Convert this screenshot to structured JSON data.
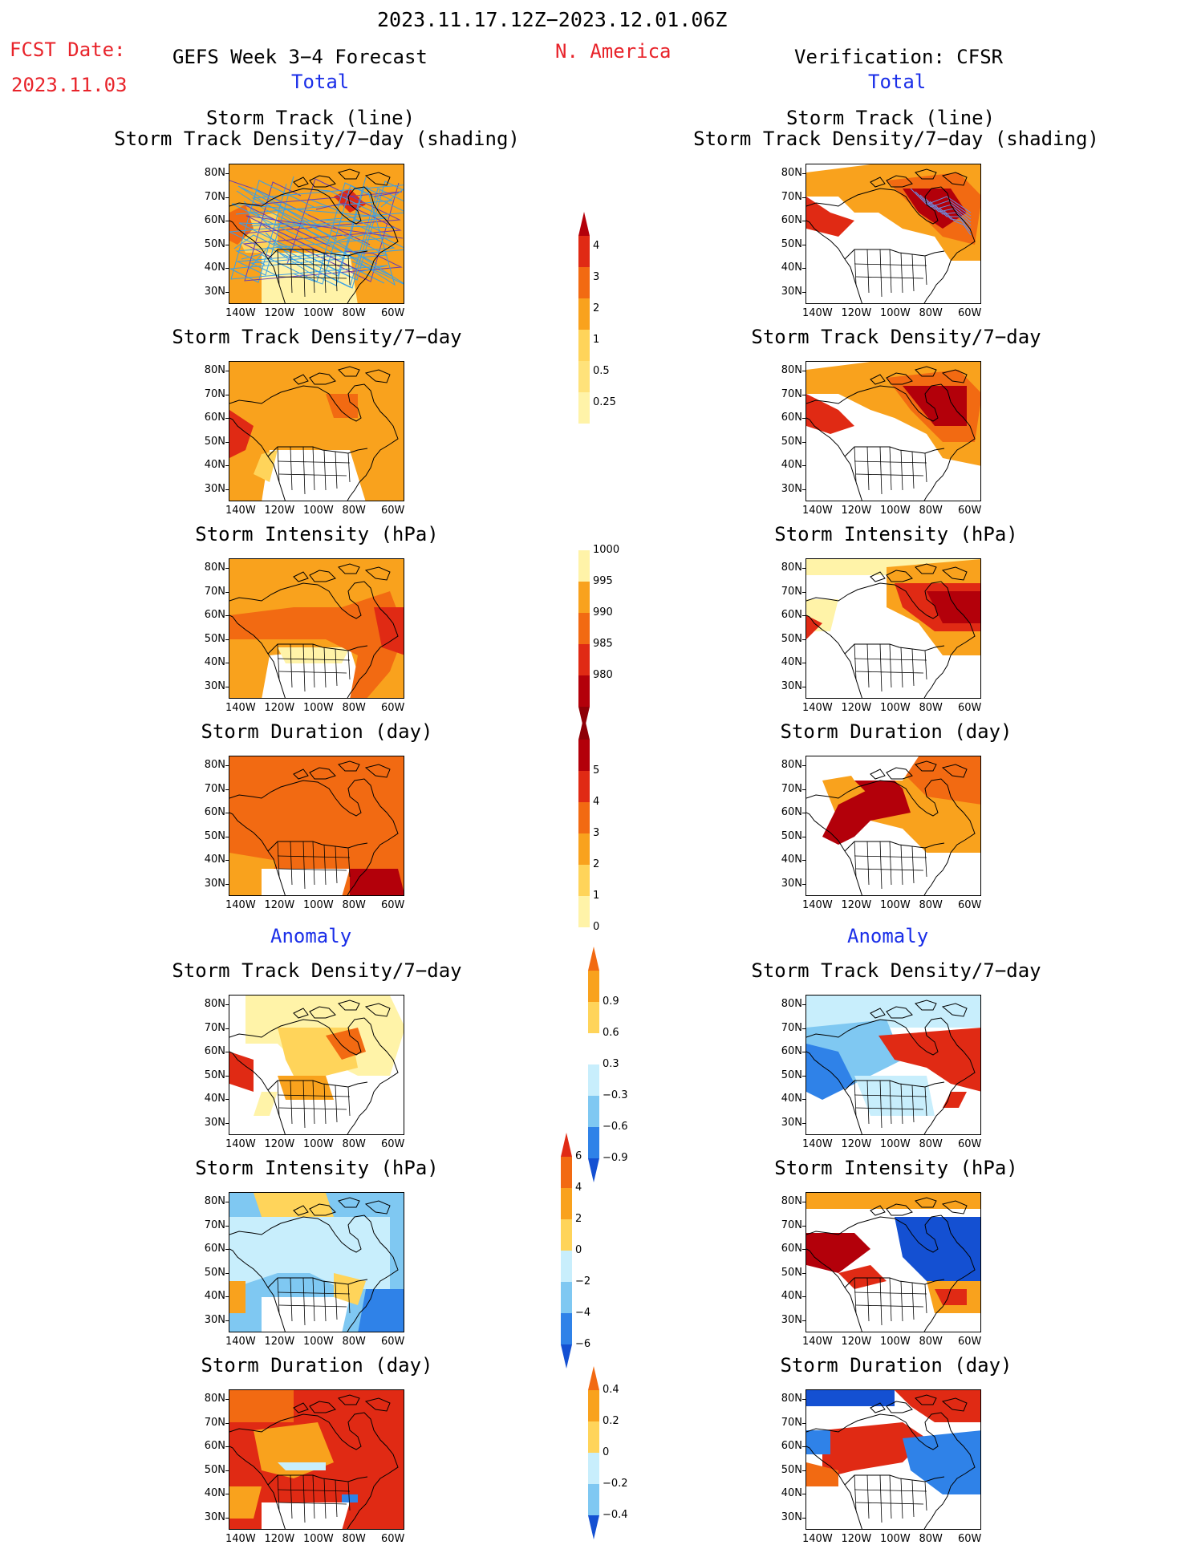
{
  "header": {
    "period": "2023.11.17.12Z−2023.12.01.06Z",
    "fcst_label": "FCST Date:",
    "fcst_date": "2023.11.03",
    "model": "GEFS Week 3−4 Forecast",
    "region": "N. America",
    "verification": "Verification: CFSR",
    "total_left": "Total",
    "total_right": "Total",
    "anom_left": "Anomaly",
    "anom_right": "Anomaly"
  },
  "panels": {
    "p1_title1": "Storm Track (line)",
    "p1_title2": "Storm Track Density/7−day (shading)",
    "p2_title": "Storm Track Density/7−day",
    "p3_title": "Storm Intensity (hPa)",
    "p4_title": "Storm Duration (day)",
    "p5_title": "Storm Track Density/7−day",
    "p6_title": "Storm Intensity (hPa)",
    "p7_title": "Storm Duration (day)"
  },
  "axes": {
    "lat": [
      "80N",
      "70N",
      "60N",
      "50N",
      "40N",
      "30N"
    ],
    "lon": [
      "140W",
      "120W",
      "100W",
      "80W",
      "60W"
    ]
  },
  "colorbars": {
    "density_total": [
      "4",
      "3",
      "2",
      "1",
      "0.5",
      "0.25"
    ],
    "intensity_total": [
      "1000",
      "995",
      "990",
      "985",
      "980"
    ],
    "duration_total": [
      "5",
      "4",
      "3",
      "2",
      "1",
      "0"
    ],
    "density_anom": [
      "0.9",
      "0.6",
      "0.3",
      "−0.3",
      "−0.6",
      "−0.9"
    ],
    "intensity_anom": [
      "6",
      "4",
      "2",
      "0",
      "−2",
      "−4",
      "−6"
    ],
    "duration_anom": [
      "0.4",
      "0.2",
      "0",
      "−0.2",
      "−0.4"
    ]
  },
  "colors": {
    "lightyellow": "#fff3a8",
    "yellow": "#ffd45a",
    "orange": "#f9a21d",
    "darkorange": "#f26a12",
    "red": "#e02a14",
    "darkred": "#b3000a",
    "lightblue": "#c8eefc",
    "skyblue": "#7fc8f2",
    "blue": "#2f82e8",
    "darkblue": "#1450d2"
  }
}
